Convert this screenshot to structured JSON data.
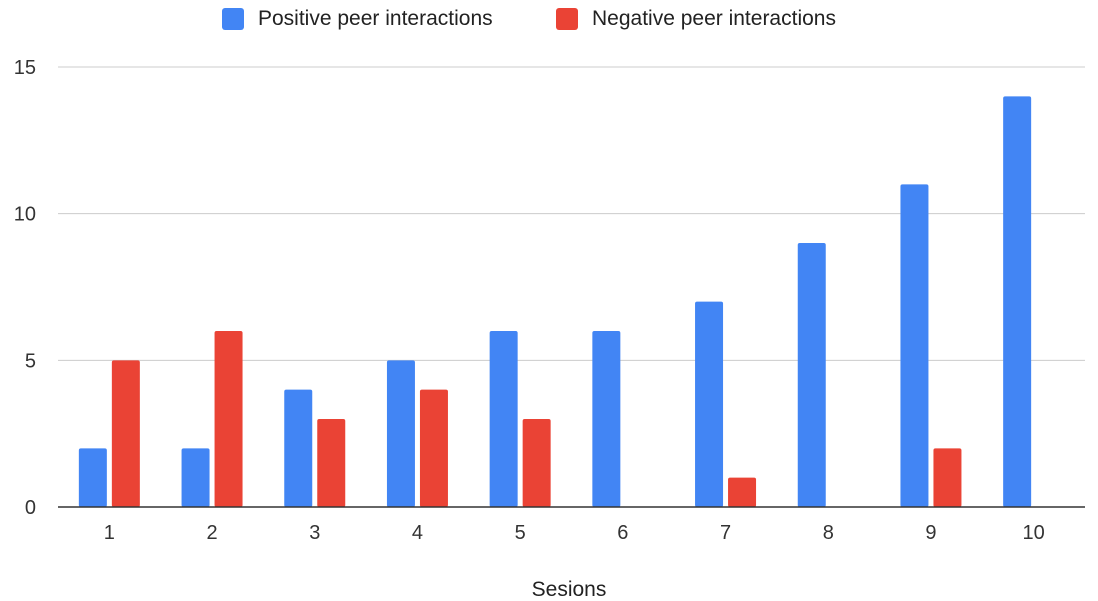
{
  "chart_data": {
    "type": "bar",
    "title": "",
    "xlabel": "Sesions",
    "ylabel": "",
    "categories": [
      "1",
      "2",
      "3",
      "4",
      "5",
      "6",
      "7",
      "8",
      "9",
      "10"
    ],
    "series": [
      {
        "name": "Positive peer interactions",
        "color": "#4285f4",
        "values": [
          2,
          2,
          4,
          5,
          6,
          6,
          7,
          9,
          11,
          14
        ]
      },
      {
        "name": "Negative peer interactions",
        "color": "#ea4335",
        "values": [
          5,
          6,
          3,
          4,
          3,
          0,
          1,
          0,
          2,
          0
        ]
      }
    ],
    "ylim": [
      0,
      15
    ],
    "yticks": [
      "0",
      "5",
      "10",
      "15"
    ],
    "grid": true,
    "legend_position": "top-center"
  }
}
